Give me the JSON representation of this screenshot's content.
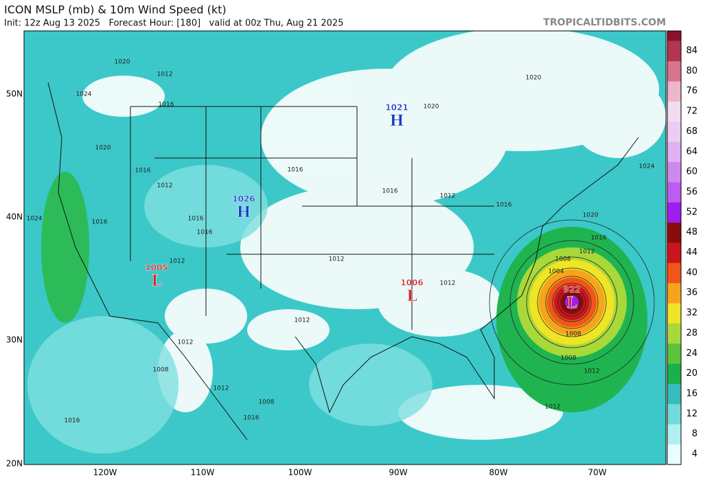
{
  "header": {
    "title": "ICON MSLP (mb) & 10m Wind Speed (kt)",
    "subtitle": "Init: 12z Aug 13 2025   Forecast Hour: [180]   valid at 00z Thu, Aug 21 2025",
    "site": "TROPICALTIDBITS.COM"
  },
  "map": {
    "lat_labels": [
      "50N",
      "40N",
      "30N",
      "20N"
    ],
    "lon_labels": [
      "120W",
      "110W",
      "100W",
      "90W",
      "80W",
      "70W"
    ],
    "centers": [
      {
        "letter": "H",
        "pressure": "1021",
        "color": "#1a3ccf"
      },
      {
        "letter": "H",
        "pressure": "1026",
        "color": "#1a3ccf"
      },
      {
        "letter": "L",
        "pressure": "1005",
        "color": "#d42a2a"
      },
      {
        "letter": "L",
        "pressure": "1006",
        "color": "#d42a2a"
      },
      {
        "letter": "L",
        "pressure": "922",
        "color": "#d42a2a"
      }
    ],
    "isobar_labels": [
      "1020",
      "1012",
      "1024",
      "1016",
      "1020",
      "1016",
      "1012",
      "1016",
      "1016",
      "1012",
      "1012",
      "1016",
      "1020",
      "1020",
      "1024",
      "1016",
      "1012",
      "1016",
      "1020",
      "1016",
      "1012",
      "1008",
      "1004",
      "1008",
      "1012",
      "1008",
      "1012",
      "1016",
      "1012",
      "1012",
      "1016",
      "1012",
      "1008",
      "1016",
      "1024",
      "1008",
      "1012"
    ]
  },
  "colorbar": {
    "ticks": [
      4,
      8,
      12,
      16,
      20,
      24,
      28,
      32,
      36,
      40,
      44,
      48,
      52,
      56,
      60,
      64,
      68,
      72,
      76,
      80,
      84
    ],
    "colors": [
      "#e8ffff",
      "#b0f0f0",
      "#72dada",
      "#36bcbc",
      "#18b04a",
      "#5cc43c",
      "#a8d83a",
      "#efe425",
      "#f5a41c",
      "#f0561a",
      "#c8161c",
      "#8a0c0c",
      "#9c1ef0",
      "#bc5cf0",
      "#cf88ee",
      "#dfb0f2",
      "#ebcdf4",
      "#f2dcf2",
      "#ecb6cc",
      "#d6768e",
      "#b43452"
    ]
  }
}
